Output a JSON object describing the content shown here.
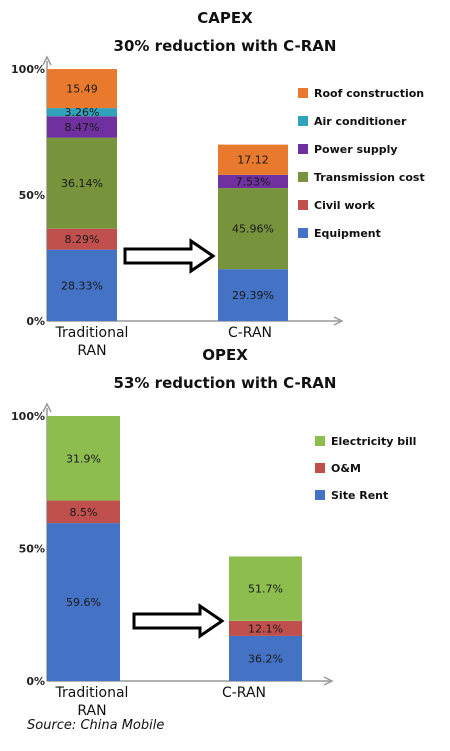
{
  "chart_data": [
    {
      "type": "bar",
      "stacked": true,
      "title": "CAPEX",
      "subtitle": "30% reduction with C-RAN",
      "categories": [
        "Traditional RAN",
        "C-RAN"
      ],
      "y_ticks": [
        "0%",
        "50%",
        "100%"
      ],
      "ylim": [
        0,
        100
      ],
      "totals": [
        100,
        70
      ],
      "series": [
        {
          "name": "Equipment",
          "color": "#4472c4",
          "values": [
            "28.33%",
            "29.39%"
          ],
          "heights": [
            28.33,
            20.57
          ]
        },
        {
          "name": "Civil work",
          "color": "#c0504d",
          "values": [
            "8.29%",
            ""
          ],
          "heights": [
            8.29,
            0
          ]
        },
        {
          "name": "Transmission cost",
          "color": "#77933c",
          "values": [
            "36.14%",
            "45.96%"
          ],
          "heights": [
            36.14,
            32.17
          ]
        },
        {
          "name": "Power supply",
          "color": "#7030a0",
          "values": [
            "8.47%",
            "7.53%"
          ],
          "heights": [
            8.47,
            5.27
          ]
        },
        {
          "name": "Air conditioner",
          "color": "#31a2bc",
          "values": [
            "3.26%",
            ""
          ],
          "heights": [
            3.26,
            0
          ]
        },
        {
          "name": "Roof construction",
          "color": "#e97a2d",
          "values": [
            "15.49",
            "17.12"
          ],
          "heights": [
            15.49,
            11.98
          ]
        }
      ],
      "legend": "right"
    },
    {
      "type": "bar",
      "stacked": true,
      "title": "OPEX",
      "subtitle": "53% reduction with C-RAN",
      "categories": [
        "Traditional RAN",
        "C-RAN"
      ],
      "y_ticks": [
        "0%",
        "50%",
        "100%"
      ],
      "ylim": [
        0,
        100
      ],
      "totals": [
        100,
        47
      ],
      "series": [
        {
          "name": "Site Rent",
          "color": "#4472c4",
          "values": [
            "59.6%",
            "36.2%"
          ],
          "heights": [
            59.6,
            17.0
          ]
        },
        {
          "name": "O&M",
          "color": "#c0504d",
          "values": [
            "8.5%",
            "12.1%"
          ],
          "heights": [
            8.5,
            5.7
          ]
        },
        {
          "name": "Electricity bill",
          "color": "#8dbd4f",
          "values": [
            "31.9%",
            "51.7%"
          ],
          "heights": [
            31.9,
            24.3
          ]
        }
      ],
      "legend": "right"
    }
  ],
  "source": "Source: China Mobile"
}
